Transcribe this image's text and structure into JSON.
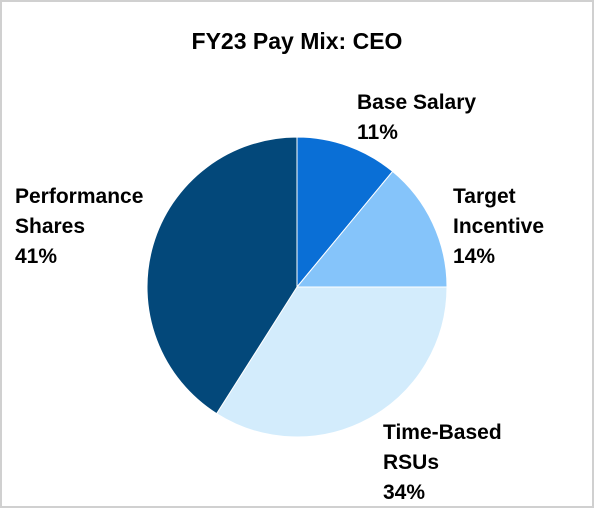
{
  "chart_data": {
    "type": "pie",
    "title": "FY23 Pay Mix: CEO",
    "slices": [
      {
        "name": "Base Salary",
        "name_lines": [
          "Base Salary"
        ],
        "value": 11,
        "label": "11%",
        "color": "#0a6fd6"
      },
      {
        "name": "Target Incentive",
        "name_lines": [
          "Target",
          "Incentive"
        ],
        "value": 14,
        "label": "14%",
        "color": "#85c4fa"
      },
      {
        "name": "Time-Based RSUs",
        "name_lines": [
          "Time-Based",
          "RSUs"
        ],
        "value": 34,
        "label": "34%",
        "color": "#d3ecfc"
      },
      {
        "name": "Performance Shares",
        "name_lines": [
          "Performance",
          "Shares"
        ],
        "value": 41,
        "label": "41%",
        "color": "#03487a"
      }
    ],
    "start_angle": "12 o'clock",
    "direction": "clockwise",
    "legend": "none"
  }
}
